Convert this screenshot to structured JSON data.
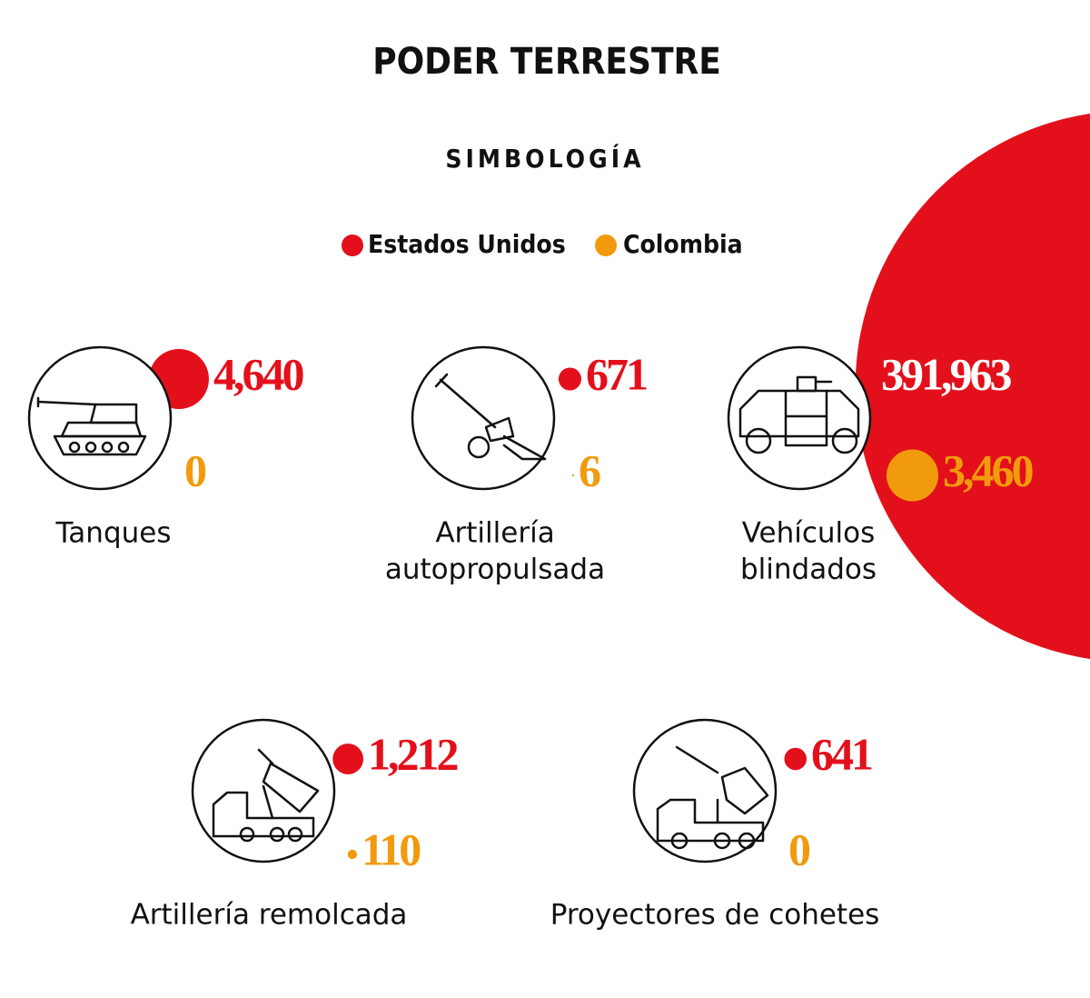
{
  "chart_data": {
    "type": "proportional-circles",
    "title": "PODER TERRESTRE",
    "subtitle": "SIMBOLOGÍA",
    "categories": [
      [
        "Tanques"
      ],
      [
        "Artillería",
        "autopropulsada"
      ],
      [
        "Vehículos",
        "blindados"
      ],
      [
        "Artillería remolcada"
      ],
      [
        "Proyectores de cohetes"
      ]
    ],
    "series": [
      {
        "name": "Estados Unidos",
        "color": "#e3101b",
        "values": [
          4640,
          671,
          391963,
          1212,
          641
        ],
        "value_labels": [
          "4,640",
          "671",
          "391,963",
          "1,212",
          "641"
        ]
      },
      {
        "name": "Colombia",
        "color": "#f29a0d",
        "values": [
          0,
          6,
          3460,
          110,
          0
        ],
        "value_labels": [
          "0",
          "6",
          "3,460",
          "110",
          "0"
        ]
      }
    ]
  }
}
